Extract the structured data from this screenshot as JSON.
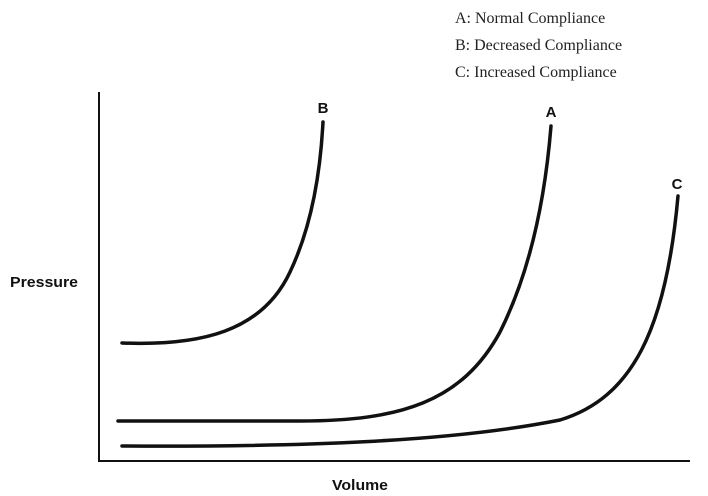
{
  "legend": [
    "A: Normal Compliance",
    "B: Decreased Compliance",
    "C: Increased Compliance"
  ],
  "axes": {
    "x_label": "Volume",
    "y_label": "Pressure"
  },
  "curves": [
    {
      "label": "B"
    },
    {
      "label": "A"
    },
    {
      "label": "C"
    }
  ]
}
